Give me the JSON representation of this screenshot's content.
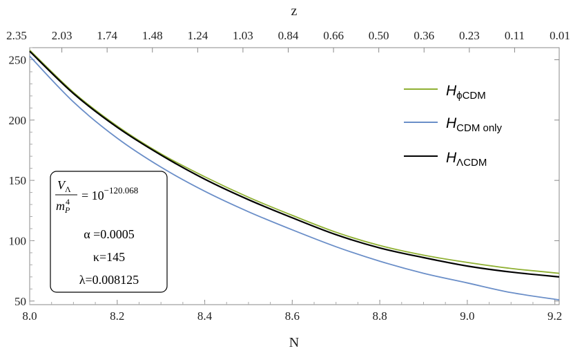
{
  "chart_data": {
    "type": "line",
    "xlabel": "N",
    "x2label": "z",
    "xlim": [
      8.0,
      9.21
    ],
    "ylim": [
      47,
      260
    ],
    "x_ticks": [
      8.0,
      8.2,
      8.4,
      8.6,
      8.8,
      9.0,
      9.2
    ],
    "x_tick_labels": [
      "8.0",
      "8.2",
      "8.4",
      "8.6",
      "8.8",
      "9.0",
      "9.2"
    ],
    "y_ticks": [
      50,
      100,
      150,
      200,
      250
    ],
    "y_tick_labels": [
      "50",
      "100",
      "150",
      "200",
      "250"
    ],
    "top_tick_labels": [
      "2.35",
      "2.03",
      "1.74",
      "1.48",
      "1.24",
      "1.03",
      "0.84",
      "0.66",
      "0.50",
      "0.36",
      "0.23",
      "0.11",
      "0.01"
    ],
    "grid": false,
    "legend_position": "top-right",
    "series": [
      {
        "name": "φCDM",
        "legend_main": "H",
        "legend_sub": "ϕCDM",
        "color": "#8fb032",
        "x": [
          8.0,
          8.1,
          8.2,
          8.3,
          8.4,
          8.5,
          8.6,
          8.7,
          8.8,
          8.9,
          9.0,
          9.1,
          9.21
        ],
        "y": [
          258,
          223,
          195,
          172,
          153,
          136,
          121,
          107,
          96,
          88,
          82,
          77,
          73
        ]
      },
      {
        "name": "CDM only",
        "legend_main": "H",
        "legend_sub": "CDM only",
        "color": "#6a8ec8",
        "x": [
          8.0,
          8.1,
          8.2,
          8.3,
          8.4,
          8.5,
          8.6,
          8.7,
          8.8,
          8.9,
          9.0,
          9.1,
          9.21
        ],
        "y": [
          253,
          215,
          185,
          161,
          141,
          124,
          109,
          95,
          83,
          73,
          65,
          57,
          51
        ]
      },
      {
        "name": "ΛCDM",
        "legend_main": "H",
        "legend_sub": "ΛCDM",
        "color": "#000000",
        "x": [
          8.0,
          8.1,
          8.2,
          8.3,
          8.4,
          8.5,
          8.6,
          8.7,
          8.8,
          8.9,
          9.0,
          9.1,
          9.21
        ],
        "y": [
          257,
          222,
          194,
          171,
          151,
          134,
          119,
          105,
          94,
          86,
          79,
          74,
          70
        ]
      }
    ],
    "annotation": {
      "frac_num_main": "V",
      "frac_num_sub": "Λ",
      "frac_den_main": "m",
      "frac_den_sup": "4",
      "frac_den_sub": "P",
      "equals_base": "= 10",
      "exponent": "−120.068",
      "alpha": "α =0.0005",
      "kappa": "κ=145",
      "lambda": "λ=0.008125"
    }
  }
}
